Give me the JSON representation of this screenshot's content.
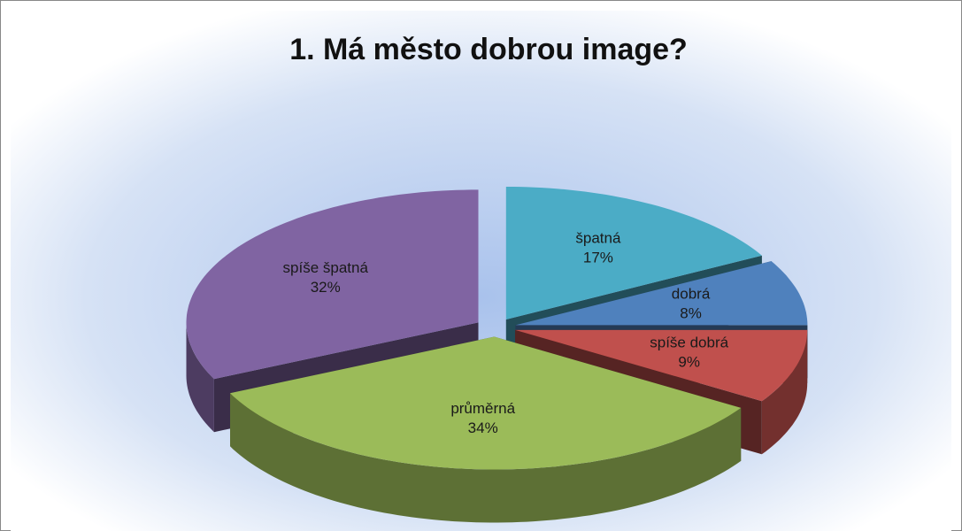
{
  "chart_data": {
    "type": "pie3d",
    "title": "1. Má město dobrou image?",
    "categories": [
      "špatná",
      "dobrá",
      "spíše dobrá",
      "průměrná",
      "spíše špatná"
    ],
    "values": [
      17,
      8,
      9,
      34,
      32
    ],
    "value_labels": [
      "17%",
      "8%",
      "9%",
      "34%",
      "32%"
    ],
    "colors": [
      "#4bacc6",
      "#4f81bd",
      "#c0504d",
      "#9bbb59",
      "#8064a2"
    ]
  }
}
